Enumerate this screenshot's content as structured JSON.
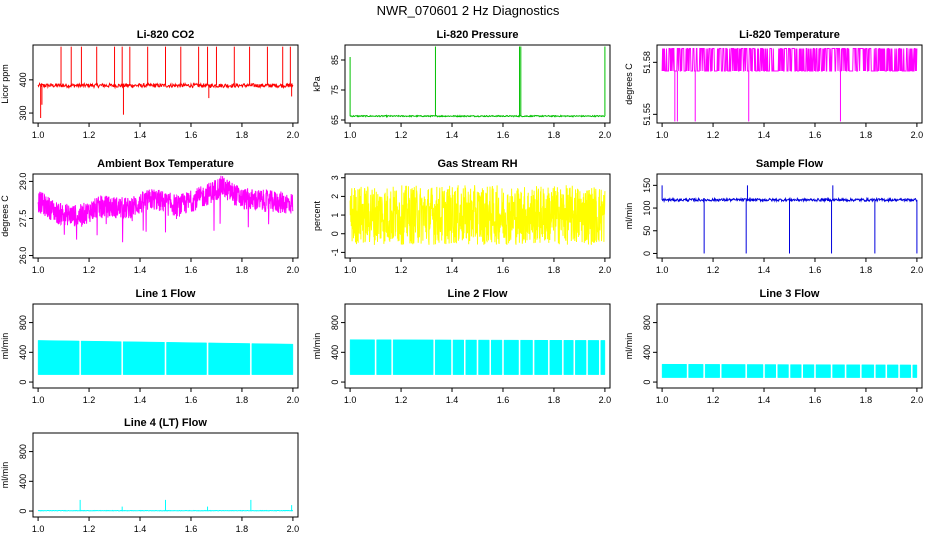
{
  "title": "NWR_070601 2 Hz Diagnostics",
  "chart_data": [
    {
      "type": "line",
      "title": "Li-820 CO2",
      "xlabel": "",
      "ylabel": "Licor ppm",
      "xlim": [
        0.98,
        2.02
      ],
      "ylim": [
        270,
        505
      ],
      "x_ticks": [
        1.0,
        1.2,
        1.4,
        1.6,
        1.8,
        2.0
      ],
      "x_tick_labels": [
        "1.0",
        "1.2",
        "1.4",
        "1.6",
        "1.8",
        "2.0"
      ],
      "y_ticks": [
        300,
        400
      ],
      "y_tick_labels": [
        "300",
        "400"
      ],
      "color": "#ff0000",
      "series": [
        {
          "name": "CO2",
          "baseline": 383,
          "noise": 6,
          "spikes": [
            [
              1.01,
              285
            ],
            [
              1.015,
              325
            ],
            [
              1.09,
              500
            ],
            [
              1.13,
              500
            ],
            [
              1.17,
              500
            ],
            [
              1.23,
              500
            ],
            [
              1.3,
              500
            ],
            [
              1.33,
              500
            ],
            [
              1.335,
              295
            ],
            [
              1.36,
              500
            ],
            [
              1.43,
              500
            ],
            [
              1.5,
              500
            ],
            [
              1.56,
              500
            ],
            [
              1.63,
              500
            ],
            [
              1.665,
              500
            ],
            [
              1.67,
              345
            ],
            [
              1.7,
              500
            ],
            [
              1.77,
              500
            ],
            [
              1.83,
              500
            ],
            [
              1.9,
              500
            ],
            [
              1.96,
              500
            ],
            [
              1.99,
              500
            ],
            [
              1.995,
              350
            ]
          ]
        }
      ]
    },
    {
      "type": "line",
      "title": "Li-820 Pressure",
      "xlabel": "",
      "ylabel": "kPa",
      "xlim": [
        0.98,
        2.02
      ],
      "ylim": [
        64,
        90
      ],
      "x_ticks": [
        1.0,
        1.2,
        1.4,
        1.6,
        1.8,
        2.0
      ],
      "x_tick_labels": [
        "1.0",
        "1.2",
        "1.4",
        "1.6",
        "1.8",
        "2.0"
      ],
      "y_ticks": [
        65,
        75,
        85
      ],
      "y_tick_labels": [
        "65",
        "75",
        "85"
      ],
      "color": "#00c000",
      "series": [
        {
          "name": "Pressure",
          "baseline": 66.3,
          "noise": 0.2,
          "spikes": [
            [
              1.0,
              86
            ],
            [
              1.335,
              89.5
            ],
            [
              1.665,
              89.5
            ],
            [
              1.67,
              89.5
            ],
            [
              2.0,
              89.5
            ]
          ]
        }
      ]
    },
    {
      "type": "line",
      "title": "Li-820 Temperature",
      "xlabel": "",
      "ylabel": "degrees C",
      "xlim": [
        0.98,
        2.02
      ],
      "ylim": [
        51.545,
        51.59
      ],
      "x_ticks": [
        1.0,
        1.2,
        1.4,
        1.6,
        1.8,
        2.0
      ],
      "x_tick_labels": [
        "1.0",
        "1.2",
        "1.4",
        "1.6",
        "1.8",
        "2.0"
      ],
      "y_ticks": [
        51.55,
        51.58
      ],
      "y_tick_labels": [
        "51.55",
        "51.58"
      ],
      "color": "#ff00ff",
      "series": [
        {
          "name": "Temperature",
          "levels": [
            51.575,
            51.588
          ],
          "low_spikes": [
            1.05,
            1.06,
            1.13,
            1.34,
            1.7
          ]
        }
      ]
    },
    {
      "type": "line",
      "title": "Ambient Box Temperature",
      "xlabel": "",
      "ylabel": "degrees C",
      "xlim": [
        0.98,
        2.02
      ],
      "ylim": [
        25.9,
        29.3
      ],
      "x_ticks": [
        1.0,
        1.2,
        1.4,
        1.6,
        1.8,
        2.0
      ],
      "x_tick_labels": [
        "1.0",
        "1.2",
        "1.4",
        "1.6",
        "1.8",
        "2.0"
      ],
      "y_ticks": [
        26.0,
        27.5,
        29.0
      ],
      "y_tick_labels": [
        "26.0",
        "27.5",
        "29.0"
      ],
      "color": "#ff00ff",
      "series": [
        {
          "name": "Ambient",
          "trend": [
            [
              1.0,
              28.2
            ],
            [
              1.08,
              27.7
            ],
            [
              1.16,
              27.6
            ],
            [
              1.25,
              28.0
            ],
            [
              1.35,
              27.9
            ],
            [
              1.45,
              28.3
            ],
            [
              1.55,
              28.0
            ],
            [
              1.65,
              28.4
            ],
            [
              1.72,
              28.8
            ],
            [
              1.8,
              28.3
            ],
            [
              1.9,
              28.2
            ],
            [
              2.0,
              28.1
            ]
          ],
          "noise": 0.45
        }
      ]
    },
    {
      "type": "line",
      "title": "Gas Stream RH",
      "xlabel": "",
      "ylabel": "percent",
      "xlim": [
        0.98,
        2.02
      ],
      "ylim": [
        -1.3,
        3.2
      ],
      "x_ticks": [
        1.0,
        1.2,
        1.4,
        1.6,
        1.8,
        2.0
      ],
      "x_tick_labels": [
        "1.0",
        "1.2",
        "1.4",
        "1.6",
        "1.8",
        "2.0"
      ],
      "y_ticks": [
        -1,
        0,
        1,
        2,
        3
      ],
      "y_tick_labels": [
        "-1",
        "0",
        "1",
        "2",
        "3"
      ],
      "color": "#ffff00",
      "series": [
        {
          "name": "RH",
          "baseline": 1.0,
          "noise": 1.6
        }
      ]
    },
    {
      "type": "line",
      "title": "Sample Flow",
      "xlabel": "",
      "ylabel": "ml/min",
      "xlim": [
        0.98,
        2.02
      ],
      "ylim": [
        -10,
        175
      ],
      "x_ticks": [
        1.0,
        1.2,
        1.4,
        1.6,
        1.8,
        2.0
      ],
      "x_tick_labels": [
        "1.0",
        "1.2",
        "1.4",
        "1.6",
        "1.8",
        "2.0"
      ],
      "y_ticks": [
        0,
        50,
        100,
        150
      ],
      "y_tick_labels": [
        "0",
        "50",
        "100",
        "150"
      ],
      "color": "#0000dd",
      "series": [
        {
          "name": "Sample",
          "baseline": 118,
          "noise": 3,
          "spikes": [
            [
              1.0,
              150
            ],
            [
              1.165,
              0
            ],
            [
              1.33,
              0
            ],
            [
              1.335,
              150
            ],
            [
              1.5,
              0
            ],
            [
              1.665,
              0
            ],
            [
              1.67,
              150
            ],
            [
              1.835,
              0
            ],
            [
              2.0,
              0
            ]
          ]
        }
      ]
    },
    {
      "type": "area",
      "title": "Line 1 Flow",
      "xlabel": "",
      "ylabel": "ml/min",
      "xlim": [
        0.98,
        2.02
      ],
      "ylim": [
        -80,
        1050
      ],
      "x_ticks": [
        1.0,
        1.2,
        1.4,
        1.6,
        1.8,
        2.0
      ],
      "x_tick_labels": [
        "1.0",
        "1.2",
        "1.4",
        "1.6",
        "1.8",
        "2.0"
      ],
      "y_ticks": [
        0,
        400,
        800
      ],
      "y_tick_labels": [
        "0",
        "400",
        "800"
      ],
      "color": "#00ffff",
      "series": [
        {
          "name": "Line 1",
          "low": 100,
          "high_start": 560,
          "high_end": 510,
          "gaps": [
            1.165,
            1.33,
            1.5,
            1.665,
            1.835
          ]
        }
      ]
    },
    {
      "type": "area",
      "title": "Line 2 Flow",
      "xlabel": "",
      "ylabel": "ml/min",
      "xlim": [
        0.98,
        2.02
      ],
      "ylim": [
        -80,
        1050
      ],
      "x_ticks": [
        1.0,
        1.2,
        1.4,
        1.6,
        1.8,
        2.0
      ],
      "x_tick_labels": [
        "1.0",
        "1.2",
        "1.4",
        "1.6",
        "1.8",
        "2.0"
      ],
      "y_ticks": [
        0,
        400,
        800
      ],
      "y_tick_labels": [
        "0",
        "400",
        "800"
      ],
      "color": "#00ffff",
      "series": [
        {
          "name": "Line 2",
          "low": 100,
          "high_start": 570,
          "high_end": 560,
          "gaps": [
            1.1,
            1.165,
            1.33,
            1.4,
            1.45,
            1.5,
            1.55,
            1.6,
            1.665,
            1.72,
            1.78,
            1.835,
            1.88,
            1.93,
            1.98
          ]
        }
      ]
    },
    {
      "type": "area",
      "title": "Line 3 Flow",
      "xlabel": "",
      "ylabel": "ml/min",
      "xlim": [
        0.98,
        2.02
      ],
      "ylim": [
        -80,
        1050
      ],
      "x_ticks": [
        1.0,
        1.2,
        1.4,
        1.6,
        1.8,
        2.0
      ],
      "x_tick_labels": [
        "1.0",
        "1.2",
        "1.4",
        "1.6",
        "1.8",
        "2.0"
      ],
      "y_ticks": [
        0,
        400,
        800
      ],
      "y_tick_labels": [
        "0",
        "400",
        "800"
      ],
      "color": "#00ffff",
      "series": [
        {
          "name": "Line 3",
          "low": 60,
          "high_start": 240,
          "high_end": 230,
          "gaps": [
            1.1,
            1.165,
            1.23,
            1.33,
            1.4,
            1.45,
            1.5,
            1.55,
            1.6,
            1.665,
            1.72,
            1.78,
            1.835,
            1.88,
            1.93,
            1.98
          ]
        }
      ]
    },
    {
      "type": "line",
      "title": "Line 4 (LT) Flow",
      "xlabel": "",
      "ylabel": "ml/min",
      "xlim": [
        0.98,
        2.02
      ],
      "ylim": [
        -80,
        1050
      ],
      "x_ticks": [
        1.0,
        1.2,
        1.4,
        1.6,
        1.8,
        2.0
      ],
      "x_tick_labels": [
        "1.0",
        "1.2",
        "1.4",
        "1.6",
        "1.8",
        "2.0"
      ],
      "y_ticks": [
        0,
        400,
        800
      ],
      "y_tick_labels": [
        "0",
        "400",
        "800"
      ],
      "color": "#00ffff",
      "series": [
        {
          "name": "Line 4",
          "baseline": 5,
          "noise": 3,
          "spikes": [
            [
              1.165,
              150
            ],
            [
              1.33,
              60
            ],
            [
              1.5,
              150
            ],
            [
              1.665,
              60
            ],
            [
              1.835,
              150
            ],
            [
              1.995,
              80
            ]
          ]
        }
      ]
    }
  ]
}
